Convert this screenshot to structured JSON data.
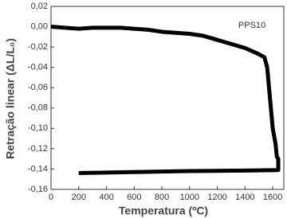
{
  "chart_data": {
    "type": "line",
    "x_label": "Temperatura (ºC)",
    "y_label": "Retração linear (ΔL/L₀)",
    "annotation": "PPS10",
    "xlim": [
      0,
      1680
    ],
    "ylim": [
      -0.16,
      0.02
    ],
    "xticks": [
      0,
      200,
      400,
      600,
      800,
      1000,
      1200,
      1400,
      1600
    ],
    "yticks": [
      {
        "value": 0.02,
        "label": "0,02"
      },
      {
        "value": 0,
        "label": "0,00"
      },
      {
        "value": -0.02,
        "label": "-0,02"
      },
      {
        "value": -0.04,
        "label": "-0,04"
      },
      {
        "value": -0.06,
        "label": "-0,06"
      },
      {
        "value": -0.08,
        "label": "-0,08"
      },
      {
        "value": -0.1,
        "label": "-0,10"
      },
      {
        "value": -0.12,
        "label": "-0,12"
      },
      {
        "value": -0.14,
        "label": "-0,14"
      },
      {
        "value": -0.16,
        "label": "-0,16"
      }
    ],
    "series": [
      {
        "name": "PPS10",
        "color": "#000000",
        "x": [
          0,
          100,
          200,
          300,
          400,
          500,
          600,
          700,
          800,
          900,
          1000,
          1100,
          1200,
          1300,
          1400,
          1500,
          1540,
          1560,
          1580,
          1600,
          1620,
          1630,
          1640,
          1640,
          1400,
          1000,
          600,
          200
        ],
        "values": [
          0,
          -0.001,
          -0.002,
          -0.001,
          -0.001,
          -0.001,
          -0.002,
          -0.003,
          -0.005,
          -0.006,
          -0.007,
          -0.009,
          -0.013,
          -0.017,
          -0.021,
          -0.027,
          -0.03,
          -0.04,
          -0.07,
          -0.1,
          -0.115,
          -0.128,
          -0.13,
          -0.141,
          -0.1415,
          -0.142,
          -0.143,
          -0.144
        ]
      }
    ]
  }
}
